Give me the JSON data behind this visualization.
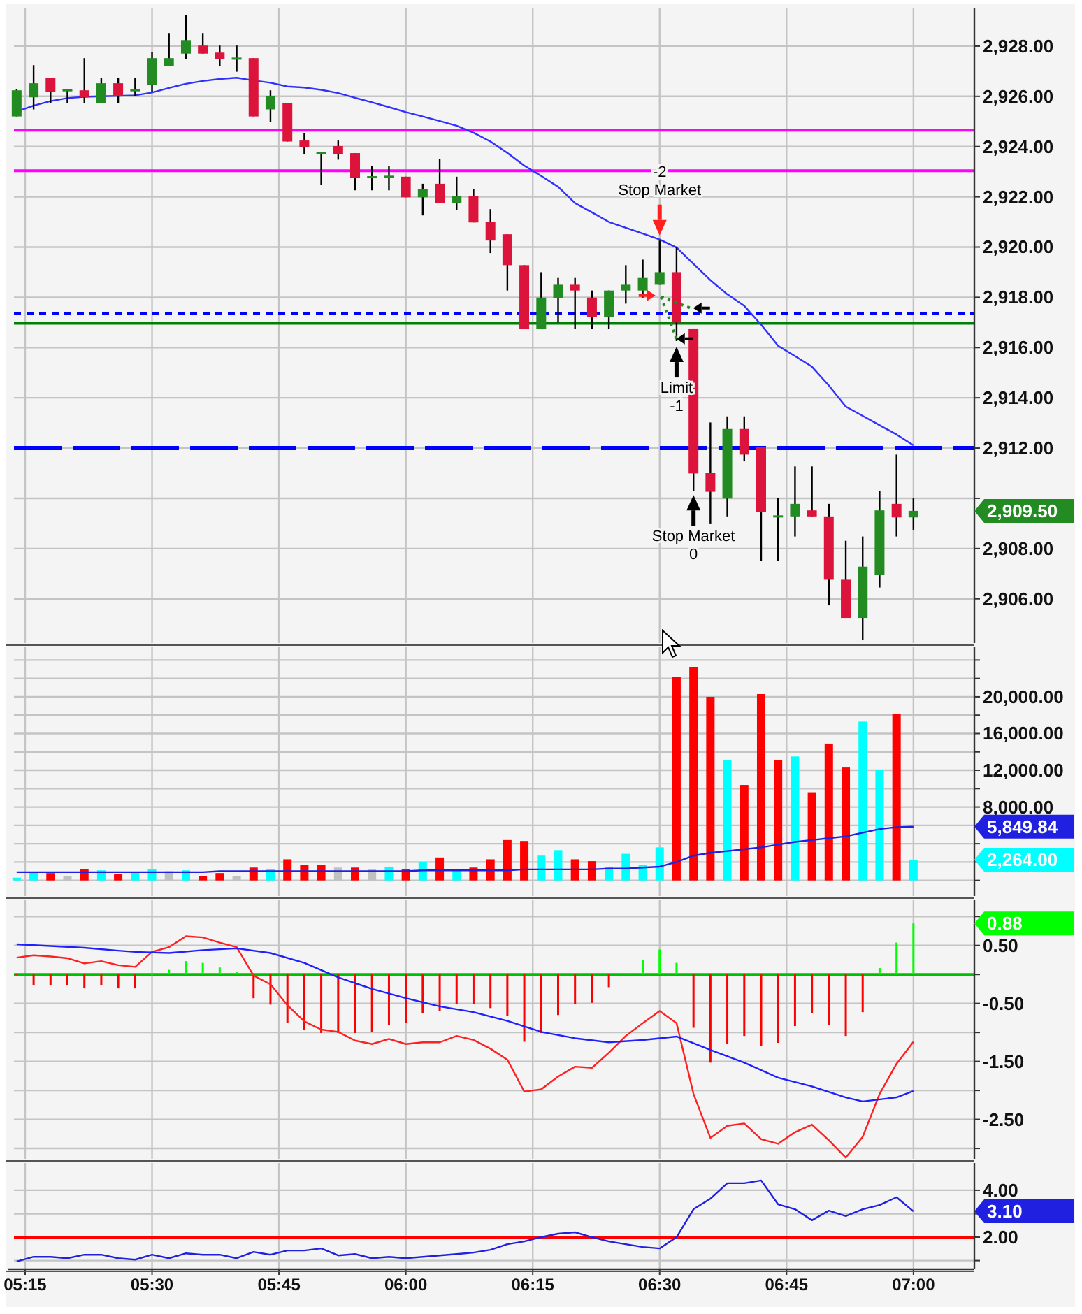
{
  "chart_data": [
    {
      "type": "candlestick",
      "x": [
        5.2333,
        5.2667,
        5.3,
        5.3333,
        5.3667,
        5.4,
        5.4333,
        5.4667,
        5.5,
        5.5333,
        5.5667,
        5.6,
        5.6333,
        5.6667,
        5.7,
        5.7333,
        5.7667,
        5.8,
        5.8333,
        5.8667,
        5.9,
        5.9333,
        5.9667,
        6,
        6.0333,
        6.0667,
        6.1,
        6.1333,
        6.1667,
        6.2,
        6.2333,
        6.2667,
        6.3,
        6.3333,
        6.3667,
        6.4,
        6.4333,
        6.4667,
        6.5,
        6.5333,
        6.5667,
        6.6,
        6.6333,
        6.6667,
        6.7,
        6.7333,
        6.7667,
        6.8,
        6.8333,
        6.8667,
        6.9,
        6.9333,
        6.9667,
        7
      ],
      "ohlc": [
        [
          2925.2,
          2926.3,
          2925.2,
          2926.24
        ],
        [
          2925.96,
          2927.24,
          2925.48,
          2926.52
        ],
        [
          2926.74,
          2926.74,
          2925.72,
          2926.19
        ],
        [
          2926.24,
          2926.24,
          2925.72,
          2926.24
        ],
        [
          2926.24,
          2927.52,
          2925.72,
          2925.96
        ],
        [
          2925.72,
          2926.74,
          2925.72,
          2926.52
        ],
        [
          2926.52,
          2926.74,
          2925.72,
          2926.0
        ],
        [
          2926.24,
          2926.74,
          2926.0,
          2926.24
        ],
        [
          2926.46,
          2927.76,
          2926.19,
          2927.52
        ],
        [
          2927.2,
          2928.52,
          2927.2,
          2927.52
        ],
        [
          2927.7,
          2929.24,
          2927.48,
          2928.24
        ],
        [
          2928.02,
          2928.52,
          2927.7,
          2927.7
        ],
        [
          2927.74,
          2928.02,
          2927.2,
          2927.48
        ],
        [
          2927.5,
          2928.02,
          2926.98,
          2927.5
        ],
        [
          2927.52,
          2927.52,
          2925.2,
          2925.2
        ],
        [
          2925.48,
          2926.24,
          2924.98,
          2926.0
        ],
        [
          2925.72,
          2925.72,
          2924.2,
          2924.2
        ],
        [
          2924.24,
          2924.52,
          2923.7,
          2923.98
        ],
        [
          2923.74,
          2923.74,
          2922.48,
          2923.74
        ],
        [
          2924.02,
          2924.24,
          2923.48,
          2923.7
        ],
        [
          2923.74,
          2923.74,
          2922.26,
          2922.76
        ],
        [
          2922.78,
          2923.24,
          2922.26,
          2922.78
        ],
        [
          2922.8,
          2923.24,
          2922.26,
          2922.8
        ],
        [
          2922.8,
          2922.8,
          2921.98,
          2921.98
        ],
        [
          2921.98,
          2922.52,
          2921.26,
          2922.3
        ],
        [
          2922.52,
          2923.52,
          2921.76,
          2921.76
        ],
        [
          2921.76,
          2922.8,
          2921.48,
          2922.02
        ],
        [
          2922.02,
          2922.3,
          2920.98,
          2920.98
        ],
        [
          2921.01,
          2921.51,
          2919.76,
          2920.26
        ],
        [
          2920.51,
          2920.51,
          2918.27,
          2919.28
        ],
        [
          2919.28,
          2919.28,
          2916.73,
          2916.73
        ],
        [
          2916.73,
          2919.0,
          2916.73,
          2917.99
        ],
        [
          2917.97,
          2918.77,
          2917.0,
          2918.5
        ],
        [
          2918.5,
          2918.77,
          2916.73,
          2918.27
        ],
        [
          2917.99,
          2918.27,
          2916.73,
          2917.23
        ],
        [
          2917.23,
          2918.27,
          2916.73,
          2918.27
        ],
        [
          2918.27,
          2919.28,
          2917.75,
          2918.5
        ],
        [
          2918.27,
          2919.5,
          2917.99,
          2918.77
        ],
        [
          2918.5,
          2920.26,
          2918.5,
          2919.0
        ],
        [
          2919.0,
          2920.0,
          2916.26,
          2917.0
        ],
        [
          2916.76,
          2916.76,
          2910.3,
          2910.99
        ],
        [
          2911.0,
          2913.02,
          2909.0,
          2910.26
        ],
        [
          2909.99,
          2913.26,
          2909.28,
          2912.76
        ],
        [
          2912.76,
          2913.26,
          2911.47,
          2911.74
        ],
        [
          2912.03,
          2912.03,
          2907.51,
          2909.46
        ],
        [
          2909.28,
          2910.0,
          2907.51,
          2909.28
        ],
        [
          2909.28,
          2911.27,
          2908.48,
          2909.78
        ],
        [
          2909.52,
          2911.27,
          2909.28,
          2909.28
        ],
        [
          2909.28,
          2909.78,
          2905.74,
          2906.76
        ],
        [
          2906.76,
          2908.31,
          2905.24,
          2905.24
        ],
        [
          2905.24,
          2908.48,
          2904.35,
          2907.28
        ],
        [
          2906.95,
          2910.3,
          2906.45,
          2909.52
        ],
        [
          2909.78,
          2911.74,
          2908.48,
          2909.24
        ],
        [
          2909.24,
          2910.0,
          2908.72,
          2909.5
        ]
      ],
      "colors": [
        "#228b22",
        "#228b22",
        "#dc143c",
        "#228b22",
        "#dc143c",
        "#228b22",
        "#dc143c",
        "#228b22",
        "#228b22",
        "#228b22",
        "#228b22",
        "#dc143c",
        "#dc143c",
        "#228b22",
        "#dc143c",
        "#228b22",
        "#dc143c",
        "#dc143c",
        "#228b22",
        "#dc143c",
        "#dc143c",
        "#228b22",
        "#228b22",
        "#dc143c",
        "#228b22",
        "#dc143c",
        "#228b22",
        "#dc143c",
        "#dc143c",
        "#dc143c",
        "#dc143c",
        "#228b22",
        "#228b22",
        "#dc143c",
        "#dc143c",
        "#228b22",
        "#228b22",
        "#228b22",
        "#228b22",
        "#dc143c",
        "#dc143c",
        "#dc143c",
        "#228b22",
        "#dc143c",
        "#dc143c",
        "#228b22",
        "#228b22",
        "#dc143c",
        "#dc143c",
        "#dc143c",
        "#228b22",
        "#228b22",
        "#dc143c",
        "#228b22"
      ],
      "value_labels": [
        null,
        null,
        null,
        null,
        null,
        null,
        null,
        null,
        null,
        null,
        null,
        null,
        null,
        null,
        null,
        null,
        null,
        null,
        null,
        null,
        null,
        null,
        null,
        null,
        null,
        null,
        null,
        null,
        null,
        null,
        null,
        null,
        null,
        null,
        null,
        null,
        null,
        null,
        null,
        null,
        null,
        null,
        null,
        null,
        null,
        null,
        null,
        null,
        null,
        null,
        null,
        null,
        null,
        "2,909.50"
      ],
      "series": [
        {
          "type": "line",
          "color": "#3030ff",
          "values": [
            2925.39,
            2925.63,
            2925.81,
            2925.93,
            2925.98,
            2926.0,
            2926.02,
            2926.04,
            2926.15,
            2926.33,
            2926.5,
            2926.61,
            2926.69,
            2926.74,
            2926.63,
            2926.54,
            2926.39,
            2926.35,
            2926.26,
            2926.13,
            2925.94,
            2925.76,
            2925.57,
            2925.37,
            2925.2,
            2925.02,
            2924.83,
            2924.55,
            2924.2,
            2923.75,
            2923.24,
            2922.83,
            2922.4,
            2921.75,
            2921.38,
            2921.0,
            2920.77,
            2920.54,
            2920.3,
            2919.98,
            2919.33,
            2918.68,
            2918.12,
            2917.66,
            2916.91,
            2916.07,
            2915.66,
            2915.24,
            2914.49,
            2913.65,
            2913.28,
            2912.91,
            2912.54,
            2912.11
          ]
        }
      ],
      "ref_lines": [
        {
          "axis": "y",
          "value": 2924.65,
          "color": "#ff00ff"
        },
        {
          "axis": "y",
          "value": 2923.04,
          "color": "#ff00ff"
        },
        {
          "axis": "y",
          "value": 2917.35,
          "color": "#0000ff",
          "line_style": "dotted"
        },
        {
          "axis": "y",
          "value": 2916.97,
          "color": "#008000"
        },
        {
          "axis": "y",
          "value": 2912.0,
          "color": "#0000ff",
          "line_style": "dashed"
        }
      ],
      "annotations": [
        "-2",
        {
          "text": "Stop Market",
          "x": 6.5,
          "y": 2920.3
        },
        {
          "text": "Limit",
          "x": 6.5333,
          "y": 2916.2
        },
        "-1",
        {
          "text": "Stop Market",
          "x": 6.5667,
          "y": 2910.3
        },
        "0"
      ],
      "xlim": [
        5.228,
        7.12
      ],
      "ylim": [
        2904.24,
        2929.5
      ],
      "xticks": [
        5.25,
        5.5,
        5.75,
        6,
        6.25,
        6.5,
        6.75,
        7
      ],
      "yticks": [
        {
          "value": 2906,
          "label": "2,906.00"
        },
        {
          "value": 2908,
          "label": "2,908.00"
        },
        {
          "value": 2910,
          "label": null
        },
        {
          "value": 2912,
          "label": "2,912.00"
        },
        {
          "value": 2914,
          "label": "2,914.00"
        },
        {
          "value": 2916,
          "label": "2,916.00"
        },
        {
          "value": 2918,
          "label": "2,918.00"
        },
        {
          "value": 2920,
          "label": "2,920.00"
        },
        {
          "value": 2922,
          "label": "2,922.00"
        },
        {
          "value": 2924,
          "label": "2,924.00"
        },
        {
          "value": 2926,
          "label": "2,926.00"
        },
        {
          "value": 2928,
          "label": "2,928.00"
        }
      ],
      "tick_labels": "y",
      "grid": true
    },
    {
      "type": "bar",
      "x": [
        5.2333,
        5.2667,
        5.3,
        5.3333,
        5.3667,
        5.4,
        5.4333,
        5.4667,
        5.5,
        5.5333,
        5.5667,
        5.6,
        5.6333,
        5.6667,
        5.7,
        5.7333,
        5.7667,
        5.8,
        5.8333,
        5.8667,
        5.9,
        5.9333,
        5.9667,
        6,
        6.0333,
        6.0667,
        6.1,
        6.1333,
        6.1667,
        6.2,
        6.2333,
        6.2667,
        6.3,
        6.3333,
        6.3667,
        6.4,
        6.4333,
        6.4667,
        6.5,
        6.5333,
        6.5667,
        6.6,
        6.6333,
        6.6667,
        6.7,
        6.7333,
        6.7667,
        6.8,
        6.8333,
        6.8667,
        6.9,
        6.9333,
        6.9667,
        7
      ],
      "series": [
        {
          "values": [
            300,
            900,
            800,
            500,
            1200,
            1100,
            700,
            800,
            1200,
            1000,
            1100,
            500,
            800,
            500,
            1400,
            1200,
            2300,
            1700,
            1700,
            1400,
            1400,
            1200,
            1500,
            1200,
            2000,
            2500,
            1100,
            1400,
            2300,
            4400,
            4300,
            2700,
            3300,
            2300,
            2100,
            1500,
            2900,
            1700,
            3600,
            22200,
            23200,
            20000,
            13100,
            10400,
            20300,
            13100,
            13500,
            9600,
            14900,
            12300,
            17300,
            12000,
            18100,
            2264
          ],
          "colors": [
            "#00ffff",
            "#00ffff",
            "#ff0000",
            "#c0c0c0",
            "#ff0000",
            "#00ffff",
            "#ff0000",
            "#00ffff",
            "#00ffff",
            "#c0c0c0",
            "#00ffff",
            "#ff0000",
            "#ff0000",
            "#c0c0c0",
            "#ff0000",
            "#00ffff",
            "#ff0000",
            "#ff0000",
            "#ff0000",
            "#c0c0c0",
            "#ff0000",
            "#c0c0c0",
            "#00ffff",
            "#ff0000",
            "#00ffff",
            "#ff0000",
            "#00ffff",
            "#ff0000",
            "#ff0000",
            "#ff0000",
            "#ff0000",
            "#00ffff",
            "#00ffff",
            "#ff0000",
            "#ff0000",
            "#00ffff",
            "#00ffff",
            "#00ffff",
            "#00ffff",
            "#ff0000",
            "#ff0000",
            "#ff0000",
            "#00ffff",
            "#ff0000",
            "#ff0000",
            "#ff0000",
            "#00ffff",
            "#ff0000",
            "#ff0000",
            "#ff0000",
            "#00ffff",
            "#00ffff",
            "#ff0000",
            "#00ffff"
          ]
        },
        {
          "type": "line",
          "color": "#2020e0",
          "values": [
            900,
            900,
            900,
            900,
            900,
            900,
            900,
            900,
            900,
            900,
            900,
            900,
            1000,
            1000,
            1000,
            1000,
            1000,
            1000,
            1000,
            1000,
            1000,
            1000,
            1000,
            1000,
            1100,
            1100,
            1100,
            1100,
            1100,
            1100,
            1200,
            1200,
            1200,
            1200,
            1200,
            1300,
            1300,
            1400,
            1500,
            2000,
            2700,
            3000,
            3200,
            3400,
            3600,
            3900,
            4200,
            4400,
            4600,
            4800,
            5200,
            5600,
            5800,
            5849.84
          ]
        }
      ],
      "annotations": [
        "2,264.00",
        "5,849.84"
      ],
      "xlim": [
        5.228,
        7.12
      ],
      "ylim": [
        -1700,
        25400
      ],
      "xticks": [
        5.25,
        5.5,
        5.75,
        6,
        6.25,
        6.5,
        6.75,
        7
      ],
      "yticks": [
        {
          "value": 0,
          "label": null
        },
        {
          "value": 2000,
          "label": null
        },
        {
          "value": 4000,
          "label": null
        },
        {
          "value": 6000,
          "label": null
        },
        {
          "value": 8000,
          "label": "8,000.00"
        },
        {
          "value": 10000,
          "label": null
        },
        {
          "value": 12000,
          "label": "12,000.00"
        },
        {
          "value": 14000,
          "label": null
        },
        {
          "value": 16000,
          "label": "16,000.00"
        },
        {
          "value": 18000,
          "label": null
        },
        {
          "value": 20000,
          "label": "20,000.00"
        },
        {
          "value": 22000,
          "label": null
        },
        {
          "value": 24000,
          "label": null
        }
      ],
      "tick_labels": "y",
      "grid": true
    },
    {
      "type": "line",
      "x": [
        5.2333,
        5.2667,
        5.3,
        5.3333,
        5.3667,
        5.4,
        5.4333,
        5.4667,
        5.5,
        5.5333,
        5.5667,
        5.6,
        5.6333,
        5.6667,
        5.7,
        5.7333,
        5.7667,
        5.8,
        5.8333,
        5.8667,
        5.9,
        5.9333,
        5.9667,
        6,
        6.0333,
        6.0667,
        6.1,
        6.1333,
        6.1667,
        6.2,
        6.2333,
        6.2667,
        6.3,
        6.3333,
        6.3667,
        6.4,
        6.4333,
        6.4667,
        6.5,
        6.5333,
        6.5667,
        6.6,
        6.6333,
        6.6667,
        6.7,
        6.7333,
        6.7667,
        6.8,
        6.8333,
        6.8667,
        6.9,
        6.9333,
        6.9667,
        7
      ],
      "series": [
        {
          "type": "bar",
          "values": [
            0,
            -0.19,
            -0.19,
            -0.19,
            -0.24,
            -0.19,
            -0.24,
            -0.24,
            0,
            0.08,
            0.23,
            0.2,
            0.12,
            0.04,
            -0.41,
            -0.52,
            -0.84,
            -0.96,
            -1.01,
            -1.01,
            -1.01,
            -0.99,
            -0.87,
            -0.84,
            -0.67,
            -0.63,
            -0.51,
            -0.51,
            -0.58,
            -0.72,
            -1.16,
            -1.01,
            -0.7,
            -0.51,
            -0.49,
            -0.22,
            0.02,
            0.25,
            0.43,
            0.2,
            -0.92,
            -1.52,
            -1.2,
            -1.06,
            -1.23,
            -1.18,
            -0.89,
            -0.67,
            -0.87,
            -1.06,
            -0.65,
            0.11,
            0.55,
            0.88
          ],
          "colors": [
            "#ff0000",
            "#ff0000",
            "#ff0000",
            "#ff0000",
            "#ff0000",
            "#ff0000",
            "#ff0000",
            "#ff0000",
            "#00ff00",
            "#00ff00",
            "#00ff00",
            "#00ff00",
            "#00ff00",
            "#00ff00",
            "#ff0000",
            "#ff0000",
            "#ff0000",
            "#ff0000",
            "#ff0000",
            "#ff0000",
            "#ff0000",
            "#ff0000",
            "#ff0000",
            "#ff0000",
            "#ff0000",
            "#ff0000",
            "#ff0000",
            "#ff0000",
            "#ff0000",
            "#ff0000",
            "#ff0000",
            "#ff0000",
            "#ff0000",
            "#ff0000",
            "#ff0000",
            "#ff0000",
            "#00ff00",
            "#00ff00",
            "#00ff00",
            "#00ff00",
            "#ff0000",
            "#ff0000",
            "#ff0000",
            "#ff0000",
            "#ff0000",
            "#ff0000",
            "#ff0000",
            "#ff0000",
            "#ff0000",
            "#ff0000",
            "#ff0000",
            "#00ff00",
            "#00ff00",
            "#00ff00"
          ]
        },
        {
          "color": "#ff2020",
          "values": [
            0.29,
            0.33,
            0.31,
            0.28,
            0.19,
            0.23,
            0.16,
            0.13,
            0.39,
            0.47,
            0.66,
            0.64,
            0.55,
            0.47,
            -0.02,
            -0.17,
            -0.53,
            -0.81,
            -0.95,
            -0.99,
            -1.14,
            -1.2,
            -1.11,
            -1.2,
            -1.17,
            -1.17,
            -1.06,
            -1.13,
            -1.28,
            -1.47,
            -2.02,
            -1.98,
            -1.76,
            -1.59,
            -1.61,
            -1.35,
            -1.06,
            -0.84,
            -0.63,
            -0.84,
            -2.06,
            -2.82,
            -2.61,
            -2.57,
            -2.84,
            -2.92,
            -2.72,
            -2.59,
            -2.86,
            -3.16,
            -2.8,
            -2.06,
            -1.54,
            -1.16
          ]
        },
        {
          "color": "#2020ff",
          "x": [
            5.2333,
            5.3,
            5.3667,
            5.4333,
            5.4667,
            5.5333,
            5.6,
            5.6667,
            5.7333,
            5.8,
            5.8667,
            5.9333,
            6,
            6.0667,
            6.1333,
            6.2,
            6.2667,
            6.3333,
            6.4,
            6.4667,
            6.5333,
            6.6,
            6.6667,
            6.7333,
            6.8,
            6.8667,
            6.9,
            6.9667,
            7
          ],
          "values": [
            0.52,
            0.49,
            0.46,
            0.41,
            0.39,
            0.37,
            0.42,
            0.45,
            0.37,
            0.2,
            -0.05,
            -0.25,
            -0.41,
            -0.55,
            -0.65,
            -0.8,
            -0.99,
            -1.1,
            -1.17,
            -1.13,
            -1.07,
            -1.3,
            -1.52,
            -1.78,
            -1.93,
            -2.12,
            -2.19,
            -2.12,
            -2.01
          ]
        }
      ],
      "annotations": [
        "0.88"
      ],
      "ref_lines": [
        {
          "axis": "y",
          "value": 0,
          "color": "#00c000"
        }
      ],
      "xlim": [
        5.228,
        7.12
      ],
      "ylim": [
        -3.18,
        1.28
      ],
      "xticks": [
        5.25,
        5.5,
        5.75,
        6,
        6.25,
        6.5,
        6.75,
        7
      ],
      "yticks": [
        {
          "value": -3,
          "label": null
        },
        {
          "value": -2.5,
          "label": "-2.50"
        },
        {
          "value": -2,
          "label": null
        },
        {
          "value": -1.5,
          "label": "-1.50"
        },
        {
          "value": -1,
          "label": null
        },
        {
          "value": -0.5,
          "label": "-0.50"
        },
        {
          "value": 0,
          "label": null
        },
        {
          "value": 0.5,
          "label": "0.50"
        },
        {
          "value": 1,
          "label": null
        }
      ],
      "tick_labels": "y",
      "grid": true
    },
    {
      "type": "line",
      "x": [
        5.2333,
        5.2667,
        5.3,
        5.3333,
        5.3667,
        5.4,
        5.4333,
        5.4667,
        5.5,
        5.5333,
        5.5667,
        5.6,
        5.6333,
        5.6667,
        5.7,
        5.7333,
        5.7667,
        5.8,
        5.8333,
        5.8667,
        5.9,
        5.9333,
        5.9667,
        6,
        6.0333,
        6.0667,
        6.1,
        6.1333,
        6.1667,
        6.2,
        6.2333,
        6.2667,
        6.3,
        6.3333,
        6.3667,
        6.4,
        6.4333,
        6.4667,
        6.5,
        6.5333,
        6.5667,
        6.6,
        6.6333,
        6.6667,
        6.7,
        6.7333,
        6.7667,
        6.8,
        6.8333,
        6.8667,
        6.9,
        6.9333,
        6.9667,
        7
      ],
      "series": [
        {
          "color": "#2020e0",
          "values": [
            0.96,
            1.16,
            1.16,
            1.1,
            1.25,
            1.25,
            1.1,
            1.04,
            1.25,
            1.1,
            1.31,
            1.25,
            1.25,
            1.1,
            1.37,
            1.25,
            1.43,
            1.43,
            1.52,
            1.22,
            1.28,
            1.1,
            1.16,
            1.1,
            1.16,
            1.22,
            1.28,
            1.34,
            1.46,
            1.7,
            1.82,
            2.0,
            2.15,
            2.21,
            2.0,
            1.82,
            1.7,
            1.58,
            1.52,
            2.0,
            3.19,
            3.64,
            4.3,
            4.3,
            4.42,
            3.4,
            3.19,
            2.72,
            3.13,
            2.9,
            3.19,
            3.37,
            3.7,
            3.1
          ]
        }
      ],
      "annotations": [
        "3.10"
      ],
      "ref_lines": [
        {
          "axis": "y",
          "value": 2,
          "color": "#ff0000"
        }
      ],
      "xlim": [
        5.228,
        7.12
      ],
      "ylim": [
        0.63,
        5.16
      ],
      "xticks": [
        {
          "value": 5.25,
          "label": "05:15"
        },
        {
          "value": 5.5,
          "label": "05:30"
        },
        {
          "value": 5.75,
          "label": "05:45"
        },
        {
          "value": 6,
          "label": "06:00"
        },
        {
          "value": 6.25,
          "label": "06:15"
        },
        {
          "value": 6.5,
          "label": "06:30"
        },
        {
          "value": 6.75,
          "label": "06:45"
        },
        {
          "value": 7,
          "label": "07:00"
        }
      ],
      "yticks": [
        {
          "value": 1,
          "label": null
        },
        {
          "value": 2,
          "label": "2.00"
        },
        {
          "value": 3,
          "label": null
        },
        {
          "value": 4,
          "label": "4.00"
        }
      ],
      "grid": true
    }
  ]
}
